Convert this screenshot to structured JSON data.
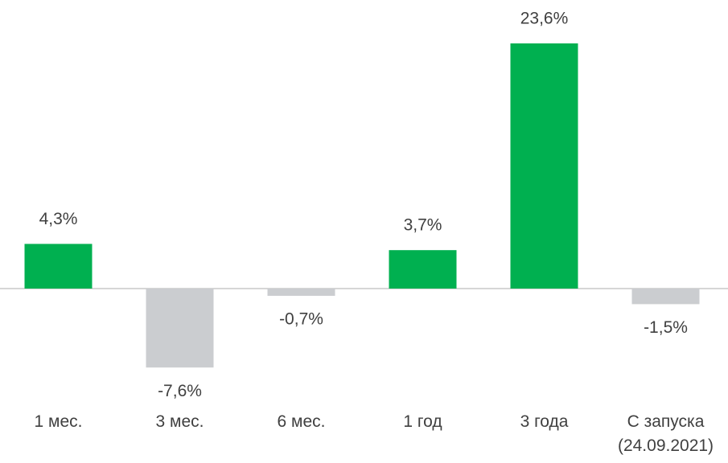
{
  "chart_data": {
    "type": "bar",
    "categories": [
      "1 мес.",
      "3 мес.",
      "6 мес.",
      "1 год",
      "3 года",
      "С запуска (24.09.2021)"
    ],
    "values": [
      4.3,
      -7.6,
      -0.7,
      3.7,
      23.6,
      -1.5
    ],
    "value_labels": [
      "4,3%",
      "-7,6%",
      "-0,7%",
      "3,7%",
      "23,6%",
      "-1,5%"
    ],
    "positive_color": "#00b050",
    "negative_color": "#cbcdd0"
  }
}
